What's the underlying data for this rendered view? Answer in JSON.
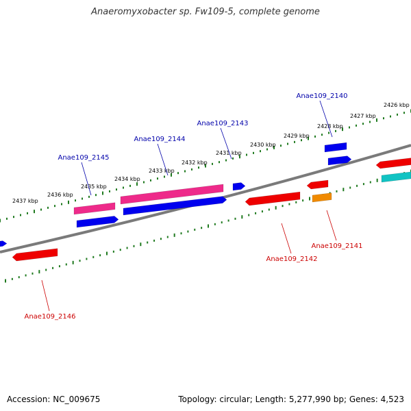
{
  "title": "Anaeromyxobacter sp. Fw109-5, complete genome",
  "accession": "Accession: NC_009675",
  "summary": "Topology: circular; Length: 5,277,990 bp; Genes: 4,523",
  "scale_labels": [
    "2426 kbp",
    "2427 kbp",
    "2428 kbp",
    "2429 kbp",
    "2430 kbp",
    "2431 kbp",
    "2432 kbp",
    "2433 kbp",
    "2434 kbp",
    "2435 kbp",
    "2436 kbp",
    "2437 kbp"
  ],
  "gene_labels_forward": [
    "Anae109_2140",
    "Anae109_2143",
    "Anae109_2144",
    "Anae109_2145"
  ],
  "gene_labels_reverse": [
    "Anae109_2141",
    "Anae109_2142",
    "Anae109_2146"
  ],
  "colors": {
    "backbone": "#7a7a7a",
    "scale_ticks": "#1f7a1f",
    "cds_forward": "#0000ee",
    "cds_reverse": "#ee0000",
    "rna": "#ee2a8a",
    "other": "#f08a00",
    "misc": "#11c3c3",
    "forward_label": "#0000aa",
    "reverse_label": "#cc0000"
  }
}
